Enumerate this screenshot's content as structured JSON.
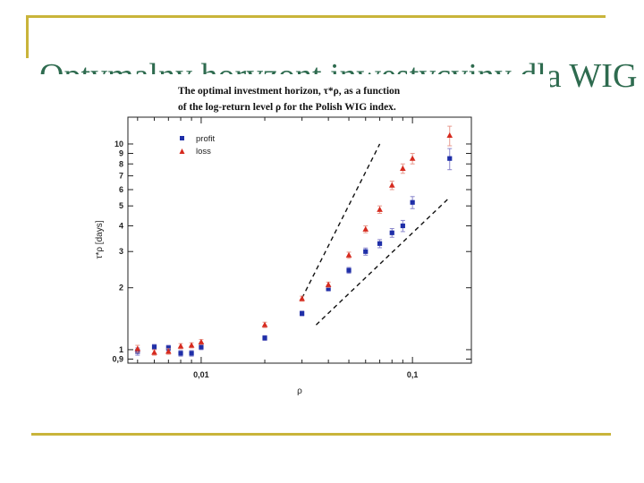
{
  "slide": {
    "title": "Optymalny horyzont inwestycyjny dla WIG"
  },
  "chart_data": {
    "type": "scatter",
    "title": "The optimal investment horizon, τ*ρ, as a function",
    "subtitle": "of the log-return level ρ for the Polish WIG index.",
    "xlabel": "ρ",
    "ylabel": "τ*ρ  [days]",
    "x_scale": "log",
    "y_scale": "log",
    "xlim": [
      0.0045,
      0.19
    ],
    "ylim": [
      0.86,
      13.5
    ],
    "x_ticks": [
      {
        "value": 0.01,
        "label": "0,01"
      },
      {
        "value": 0.1,
        "label": "0,1"
      }
    ],
    "y_ticks": [
      {
        "value": 0.9,
        "label": "0,9"
      },
      {
        "value": 1,
        "label": "1"
      },
      {
        "value": 2,
        "label": "2"
      },
      {
        "value": 3,
        "label": "3"
      },
      {
        "value": 4,
        "label": "4"
      },
      {
        "value": 5,
        "label": "5"
      },
      {
        "value": 6,
        "label": "6"
      },
      {
        "value": 7,
        "label": "7"
      },
      {
        "value": 8,
        "label": "8"
      },
      {
        "value": 9,
        "label": "9"
      },
      {
        "value": 10,
        "label": "10"
      }
    ],
    "legend_position": "top-left",
    "series": [
      {
        "name": "profit",
        "marker": "square",
        "color": "#1f2fa8",
        "x": [
          0.005,
          0.006,
          0.007,
          0.008,
          0.009,
          0.01,
          0.02,
          0.03,
          0.04,
          0.05,
          0.06,
          0.07,
          0.08,
          0.09,
          0.1,
          0.15
        ],
        "y": [
          0.98,
          1.03,
          1.02,
          0.96,
          0.96,
          1.03,
          1.14,
          1.5,
          1.98,
          2.43,
          3.0,
          3.28,
          3.7,
          4.0,
          5.2,
          8.5
        ],
        "err": [
          0.04,
          0.03,
          0.03,
          0.03,
          0.03,
          0.03,
          0.03,
          0.04,
          0.05,
          0.08,
          0.12,
          0.15,
          0.18,
          0.25,
          0.35,
          1.0
        ]
      },
      {
        "name": "loss",
        "marker": "triangle",
        "color": "#d62a1e",
        "x": [
          0.005,
          0.006,
          0.007,
          0.008,
          0.009,
          0.01,
          0.02,
          0.03,
          0.04,
          0.05,
          0.06,
          0.07,
          0.08,
          0.09,
          0.1,
          0.15
        ],
        "y": [
          1.01,
          0.97,
          0.98,
          1.04,
          1.05,
          1.09,
          1.32,
          1.77,
          2.07,
          2.88,
          3.85,
          4.8,
          6.3,
          7.6,
          8.5,
          11.0
        ],
        "err": [
          0.04,
          0.03,
          0.03,
          0.03,
          0.03,
          0.03,
          0.04,
          0.05,
          0.06,
          0.1,
          0.15,
          0.2,
          0.3,
          0.4,
          0.5,
          1.2
        ]
      }
    ],
    "guide_lines": [
      {
        "x": [
          0.03,
          0.07
        ],
        "y": [
          1.78,
          10.0
        ],
        "style": "dashed"
      },
      {
        "x": [
          0.035,
          0.15
        ],
        "y": [
          1.32,
          5.5
        ],
        "style": "dashed"
      }
    ]
  }
}
